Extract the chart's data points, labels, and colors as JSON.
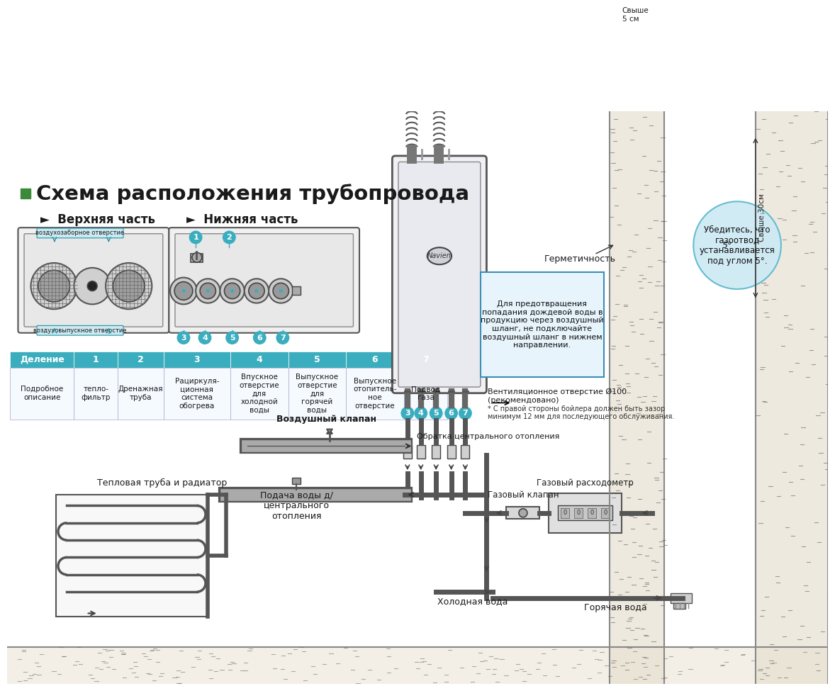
{
  "bg_color": "#ffffff",
  "title_text": "Схема расположения трубопровода",
  "subtitle_top": "►  Верхняя часть",
  "subtitle_bot": "►  Нижняя часть",
  "table_header": [
    "Деление",
    "1",
    "2",
    "3",
    "4",
    "5",
    "6",
    "7"
  ],
  "table_row": [
    "Подробное\nописание",
    "тепло-\nфильтр",
    "Дренажная\nтруба",
    "Рациркуля-\nционная\nсистема\nобогрева",
    "Впускное\nотверстие\nдля\nхолодной\nводы",
    "Выпускное\nотверстие\nдля\nгорячей\nводы",
    "Выпускное\nотопитель-\nное\nотверстие",
    "Подвод\nгаза"
  ],
  "table_header_bg": "#3aadbe",
  "table_header_fg": "#ffffff",
  "boiler_label_text": "Для предотвращения\nпопадания дождевой воды в\nпродукцию через воздушный\nшланг, не подключайте\nвоздушный шланг в нижнем\nнаправлении.",
  "bubble_text": "Убедитесь, что\nгазоотвод\nустанавливается\nпод углом 5°.",
  "label_germetichnost": "Герметичность",
  "label_svyshe5": "Свыше\n5 см",
  "label_svyshe30": "Свыше 30см",
  "label_vent": "Вентиляционное отверстие Ø100",
  "label_vent2": "(рекомендовано)",
  "label_vent3": "* С правой стороны бойлера должен быть зазор",
  "label_vent4": "минимум 12 мм для последующего обслуживания.",
  "label_vozduh_klapan": "Воздушный клапан",
  "label_obratka": "Обратка центрального отопления",
  "label_teplovaya": "Тепловая труба и радиатор",
  "label_podacha": "Подача воды д/\nцентрального\nотопления",
  "label_kholodnaya": "Холодная вода",
  "label_goryachaya": "Горячая вода",
  "label_gazoviy_klapan": "Газовый клапан",
  "label_gazoviy_raskh": "Газовый расходометр",
  "label_vozduh_otverstie": "воздухозаборное отверстие",
  "label_vozduh_otverstie2": "воздуховыпускное отверстие"
}
